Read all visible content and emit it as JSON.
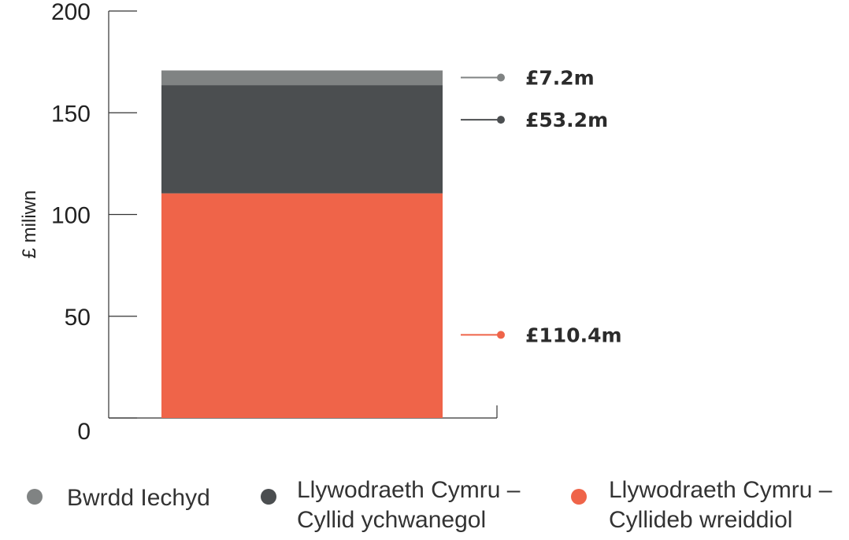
{
  "chart_data": {
    "type": "bar",
    "stacked": true,
    "title": "",
    "xlabel": "",
    "ylabel": "£ miliwn",
    "ylim": [
      0,
      200
    ],
    "yticks": [
      0,
      50,
      100,
      150,
      200
    ],
    "ytick_labels": [
      "0",
      "50",
      "100",
      "150",
      "200"
    ],
    "grid": false,
    "legend_position": "bottom",
    "categories": [
      ""
    ],
    "series": [
      {
        "name": "Llywodraeth Cymru – Cyllideb wreiddiol",
        "legend_lines": [
          "Llywodraeth Cymru –",
          "Cyllideb wreiddiol"
        ],
        "values": [
          110.4
        ],
        "data_label": "£110.4m",
        "color": "#ef6449"
      },
      {
        "name": "Llywodraeth Cymru – Cyllid ychwanegol",
        "legend_lines": [
          "Llywodraeth Cymru –",
          "Cyllid ychwanegol"
        ],
        "values": [
          53.2
        ],
        "data_label": "£53.2m",
        "color": "#4b4e50"
      },
      {
        "name": "Bwrdd Iechyd",
        "legend_lines": [
          "Bwrdd Iechyd"
        ],
        "values": [
          7.2
        ],
        "data_label": "£7.2m",
        "color": "#808383"
      }
    ],
    "legend_order": [
      2,
      1,
      0
    ]
  }
}
